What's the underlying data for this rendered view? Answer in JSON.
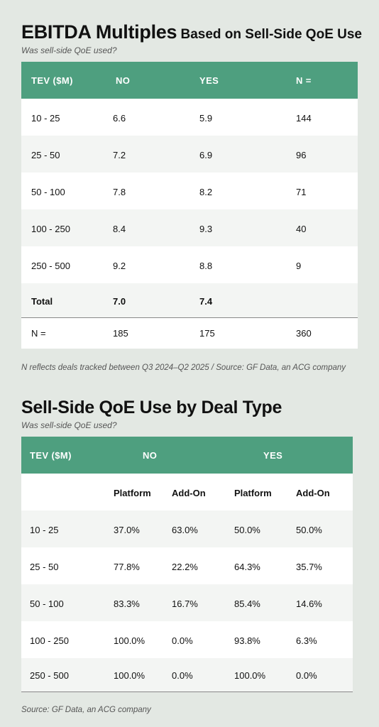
{
  "table1": {
    "title_big": "EBITDA Multiples",
    "title_small": " Based on Sell-Side QoE Use",
    "subtitle": "Was sell-side QoE used?",
    "headers": [
      "TEV ($M)",
      "NO",
      "YES",
      "N ="
    ],
    "rows": [
      [
        "10 - 25",
        "6.6",
        "5.9",
        "144"
      ],
      [
        "25 - 50",
        "7.2",
        "6.9",
        "96"
      ],
      [
        "50 - 100",
        "7.8",
        "8.2",
        "71"
      ],
      [
        "100 - 250",
        "8.4",
        "9.3",
        "40"
      ],
      [
        "250 - 500",
        "9.2",
        "8.8",
        "9"
      ],
      [
        "Total",
        "7.0",
        "7.4",
        ""
      ],
      [
        "N =",
        "185",
        "175",
        "360"
      ]
    ],
    "footnote": "N reflects deals tracked between Q3 2024–Q2 2025 / Source: GF Data, an ACG company"
  },
  "table2": {
    "title": "Sell-Side QoE Use by Deal Type",
    "subtitle": "Was sell-side QoE used?",
    "headers": [
      "TEV ($M)",
      "NO",
      "YES"
    ],
    "subheaders": [
      "Platform",
      "Add-On",
      "Platform",
      "Add-On"
    ],
    "rows": [
      [
        "10 - 25",
        "37.0%",
        "63.0%",
        "50.0%",
        "50.0%"
      ],
      [
        "25 - 50",
        "77.8%",
        "22.2%",
        "64.3%",
        "35.7%"
      ],
      [
        "50 - 100",
        "83.3%",
        "16.7%",
        "85.4%",
        "14.6%"
      ],
      [
        "100 - 250",
        "100.0%",
        "0.0%",
        "93.8%",
        "6.3%"
      ],
      [
        "250 - 500",
        "100.0%",
        "0.0%",
        "100.0%",
        "0.0%"
      ]
    ],
    "source": "Source: GF Data, an ACG company"
  },
  "colors": {
    "header": "#4e9f7f",
    "background": "#e3e8e3",
    "panel": "#ffffff",
    "alt_row": "#f3f5f3"
  }
}
